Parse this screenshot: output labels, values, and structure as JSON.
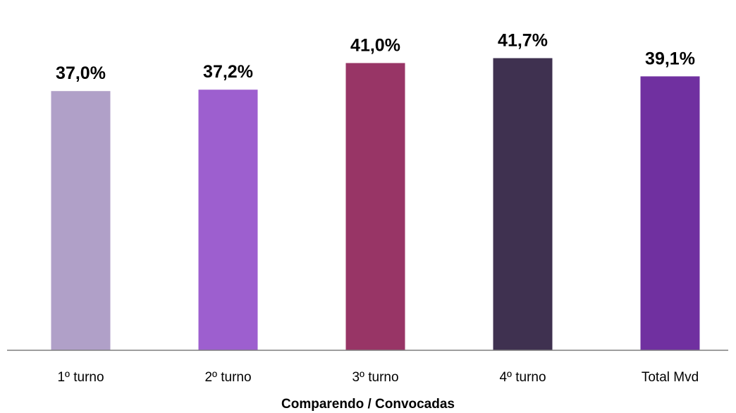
{
  "chart_data": {
    "type": "bar",
    "categories": [
      "1º turno",
      "2º turno",
      "3º turno",
      "4º turno",
      "Total Mvd"
    ],
    "values": [
      37.0,
      37.2,
      41.0,
      41.7,
      39.1
    ],
    "value_labels": [
      "37,0%",
      "37,2%",
      "41,0%",
      "41,7%",
      "39,1%"
    ],
    "colors": [
      "#b0a0c8",
      "#9d5fcf",
      "#983566",
      "#3f3150",
      "#7030a0"
    ],
    "title": "",
    "xlabel": "Comparendo / Convocadas",
    "ylabel": "",
    "ylim": [
      0,
      45
    ],
    "grid": false,
    "legend": "none"
  }
}
